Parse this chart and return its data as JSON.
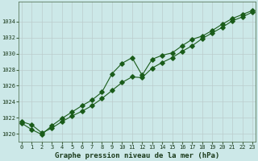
{
  "background_color": "#cce8e8",
  "grid_color": "#ffffff",
  "grid_color2": "#bbcccc",
  "line_color": "#1a5c1a",
  "xlabel": "Graphe pression niveau de la mer (hPa)",
  "xlim_min": -0.3,
  "xlim_max": 23.3,
  "ylim_min": 1019.0,
  "ylim_max": 1036.5,
  "yticks": [
    1020,
    1022,
    1024,
    1026,
    1028,
    1030,
    1032,
    1034
  ],
  "xticks": [
    0,
    1,
    2,
    3,
    4,
    5,
    6,
    7,
    8,
    9,
    10,
    11,
    12,
    13,
    14,
    15,
    16,
    17,
    18,
    19,
    20,
    21,
    22,
    23
  ],
  "series1_y": [
    1021.5,
    1021.1,
    1020.1,
    1020.7,
    1021.5,
    1022.2,
    1022.8,
    1023.5,
    1024.4,
    1025.4,
    1026.4,
    1027.1,
    1027.0,
    1028.2,
    1028.9,
    1029.5,
    1030.3,
    1031.0,
    1031.9,
    1032.6,
    1033.3,
    1034.1,
    1034.6,
    1035.2
  ],
  "series2_y": [
    1021.3,
    1020.5,
    1019.9,
    1021.0,
    1021.9,
    1022.7,
    1023.5,
    1024.2,
    1025.2,
    1027.5,
    1028.8,
    1029.5,
    1027.3,
    1029.3,
    1029.8,
    1030.1,
    1031.0,
    1031.8,
    1032.2,
    1032.9,
    1033.7,
    1034.4,
    1034.9,
    1035.4
  ],
  "markersize": 2.8,
  "linewidth": 0.8,
  "tick_fontsize": 5.0,
  "xlabel_fontsize": 6.5
}
